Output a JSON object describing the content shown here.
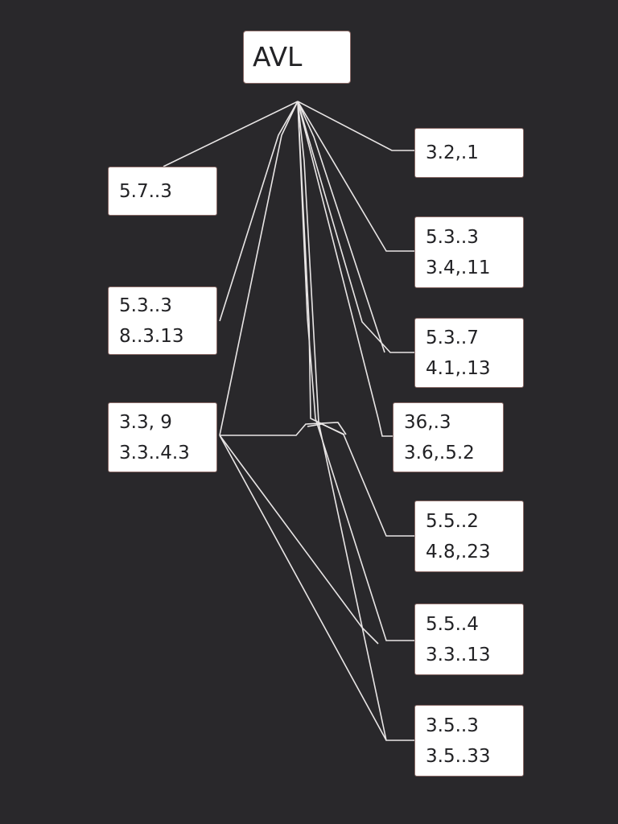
{
  "root": {
    "label": "AVL"
  },
  "left_nodes": [
    {
      "lines": [
        "5.7..3"
      ]
    },
    {
      "lines": [
        "5.3..3",
        "8..3.13"
      ]
    },
    {
      "lines": [
        "3.3, 9",
        "3.3..4.3"
      ]
    }
  ],
  "right_nodes": [
    {
      "lines": [
        "3.2,.1"
      ]
    },
    {
      "lines": [
        "5.3..3",
        "3.4,.11"
      ]
    },
    {
      "lines": [
        "5.3..7",
        "4.1,.13"
      ]
    },
    {
      "lines": [
        "36,.3",
        "3.6,.5.2"
      ]
    },
    {
      "lines": [
        "5.5..2",
        "4.8,.23"
      ]
    },
    {
      "lines": [
        "5.5..4",
        "3.3..13"
      ]
    },
    {
      "lines": [
        "3.5..3",
        "3.5..33"
      ]
    }
  ],
  "colors": {
    "background": "#29282b",
    "node_fill": "#ffffff",
    "node_border": "#8a6a66",
    "edge": "#e9e6e6",
    "text": "#222225"
  }
}
